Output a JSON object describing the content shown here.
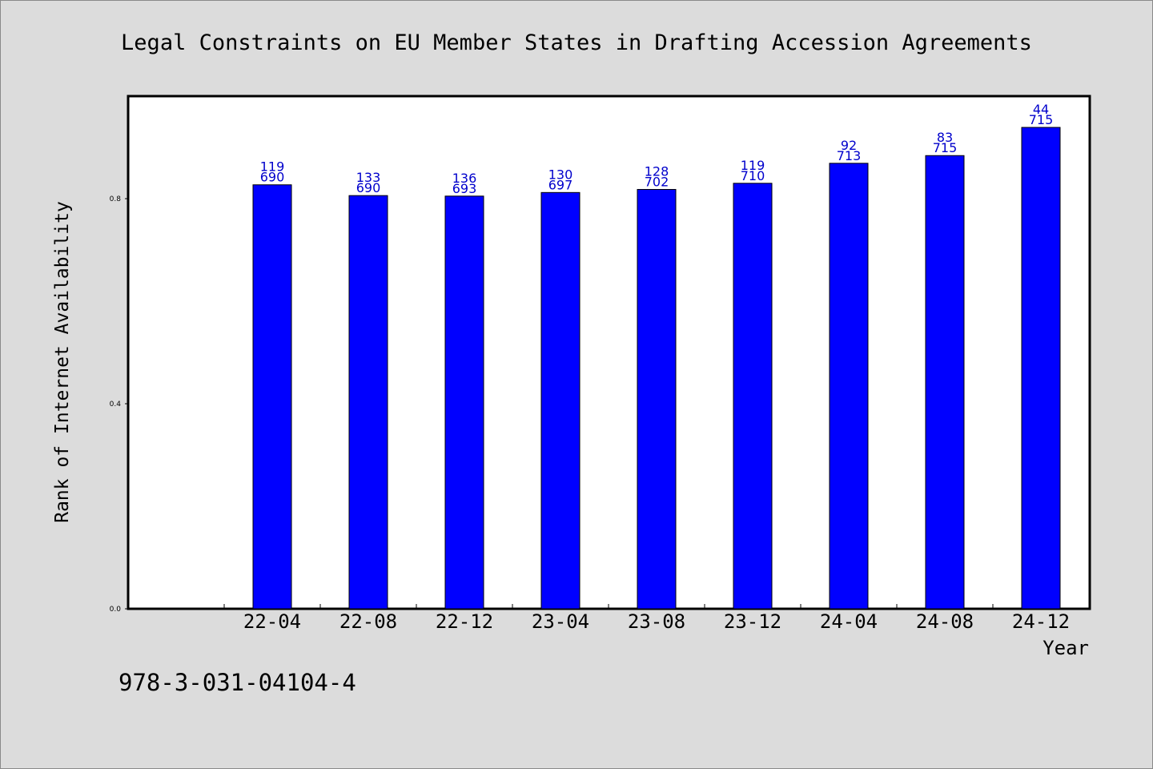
{
  "chart_data": {
    "type": "bar",
    "title": "Legal Constraints on EU Member States in Drafting Accession Agreements",
    "xlabel": "Year",
    "ylabel": "Rank of Internet Availability",
    "categories": [
      "22-04",
      "22-08",
      "22-12",
      "23-04",
      "23-08",
      "23-12",
      "24-04",
      "24-08",
      "24-12"
    ],
    "series": [
      {
        "values": [
          0.827,
          0.806,
          0.805,
          0.812,
          0.818,
          0.83,
          0.869,
          0.884,
          0.939
        ],
        "label_top": [
          "119",
          "133",
          "136",
          "130",
          "128",
          "119",
          "92",
          "83",
          "44"
        ],
        "label_bottom": [
          "690",
          "690",
          "693",
          "697",
          "702",
          "710",
          "713",
          "715",
          "715"
        ]
      }
    ],
    "yticks": [
      "0.0",
      "0.4",
      "0.8"
    ],
    "ylim": [
      0,
      1.0
    ],
    "grid": false,
    "colors": {
      "bar": "#0000ff",
      "bar_edge": "#000000",
      "label": "#0000cc",
      "plot_bg": "#ffffff",
      "page_bg": "#dcdcdc"
    }
  },
  "footer": {
    "isbn": "978-3-031-04104-4"
  }
}
